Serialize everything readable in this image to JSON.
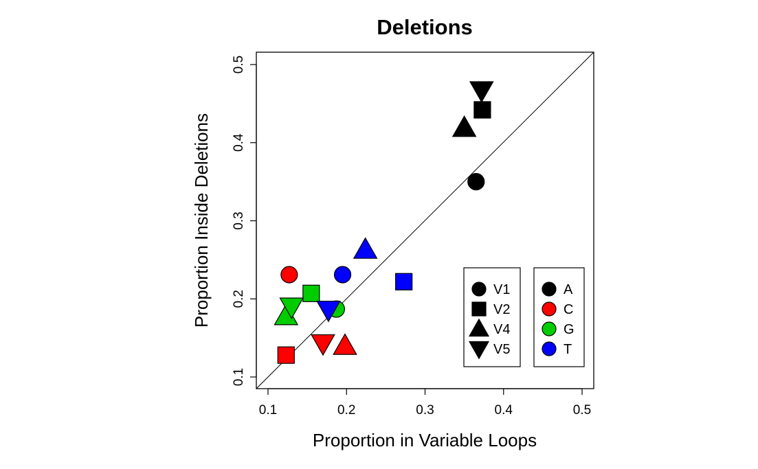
{
  "chart_data": {
    "type": "scatter",
    "title": "Deletions",
    "xlabel": "Proportion in Variable Loops",
    "ylabel": "Proportion Inside Deletions",
    "xlim": [
      0.1,
      0.5
    ],
    "ylim": [
      0.1,
      0.5
    ],
    "x_ticks": [
      "0.1",
      "0.2",
      "0.3",
      "0.4",
      "0.5"
    ],
    "y_ticks": [
      "0.1",
      "0.2",
      "0.3",
      "0.4",
      "0.5"
    ],
    "grid": false,
    "reference_line": "y = x",
    "shape_legend": {
      "placement": "bottom-right",
      "entries": [
        {
          "label": "V1",
          "shape": "circle"
        },
        {
          "label": "V2",
          "shape": "square"
        },
        {
          "label": "V4",
          "shape": "triangle-up"
        },
        {
          "label": "V5",
          "shape": "triangle-down"
        }
      ]
    },
    "color_legend": {
      "placement": "bottom-right",
      "entries": [
        {
          "label": "A",
          "color": "#000000"
        },
        {
          "label": "C",
          "color": "#ff0000"
        },
        {
          "label": "G",
          "color": "#00cc00"
        },
        {
          "label": "T",
          "color": "#0000ff"
        }
      ]
    },
    "points": [
      {
        "x": 0.365,
        "y": 0.35,
        "shape": "circle",
        "color": "#000000"
      },
      {
        "x": 0.373,
        "y": 0.442,
        "shape": "square",
        "color": "#000000"
      },
      {
        "x": 0.35,
        "y": 0.419,
        "shape": "triangle-up",
        "color": "#000000"
      },
      {
        "x": 0.372,
        "y": 0.467,
        "shape": "triangle-down",
        "color": "#000000"
      },
      {
        "x": 0.127,
        "y": 0.231,
        "shape": "circle",
        "color": "#ff0000"
      },
      {
        "x": 0.123,
        "y": 0.128,
        "shape": "square",
        "color": "#ff0000"
      },
      {
        "x": 0.198,
        "y": 0.14,
        "shape": "triangle-up",
        "color": "#ff0000"
      },
      {
        "x": 0.17,
        "y": 0.143,
        "shape": "triangle-down",
        "color": "#ff0000"
      },
      {
        "x": 0.187,
        "y": 0.187,
        "shape": "circle",
        "color": "#00cc00"
      },
      {
        "x": 0.155,
        "y": 0.207,
        "shape": "square",
        "color": "#00cc00"
      },
      {
        "x": 0.123,
        "y": 0.178,
        "shape": "triangle-up",
        "color": "#00cc00"
      },
      {
        "x": 0.13,
        "y": 0.19,
        "shape": "triangle-down",
        "color": "#00cc00"
      },
      {
        "x": 0.195,
        "y": 0.231,
        "shape": "circle",
        "color": "#0000ff"
      },
      {
        "x": 0.273,
        "y": 0.222,
        "shape": "square",
        "color": "#0000ff"
      },
      {
        "x": 0.224,
        "y": 0.263,
        "shape": "triangle-up",
        "color": "#0000ff"
      },
      {
        "x": 0.177,
        "y": 0.186,
        "shape": "triangle-down",
        "color": "#0000ff"
      }
    ]
  }
}
